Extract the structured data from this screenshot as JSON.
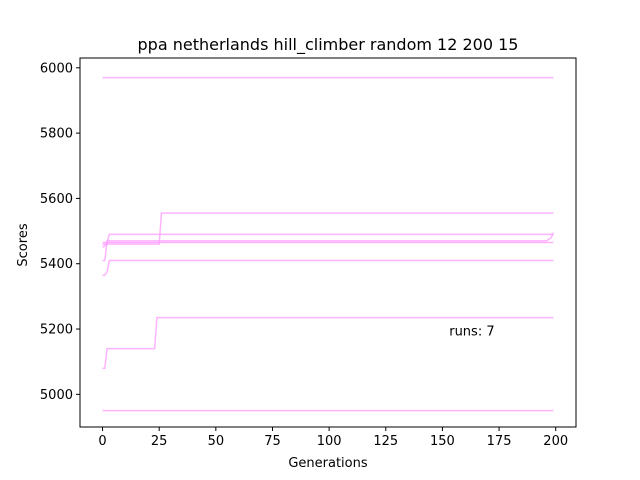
{
  "chart_data": {
    "type": "line",
    "title": "ppa netherlands hill_climber random 12 200 15",
    "xlabel": "Generations",
    "ylabel": "Scores",
    "xlim": [
      -9.95,
      208.95
    ],
    "ylim": [
      4900,
      6030
    ],
    "xticks": [
      0,
      25,
      50,
      75,
      100,
      125,
      150,
      175,
      200
    ],
    "yticks": [
      5000,
      5200,
      5400,
      5600,
      5800,
      6000
    ],
    "grid": false,
    "line_color": "#ff99ff",
    "annotation": {
      "text": "runs: 7",
      "x": 153,
      "y": 5180
    },
    "series": [
      {
        "values": [
          [
            0,
            5970
          ],
          [
            199,
            5970
          ]
        ]
      },
      {
        "values": [
          [
            0,
            5460
          ],
          [
            25,
            5460
          ],
          [
            26,
            5555
          ],
          [
            199,
            5555
          ]
        ]
      },
      {
        "values": [
          [
            0,
            5450
          ],
          [
            1,
            5455
          ],
          [
            2,
            5465
          ],
          [
            199,
            5465
          ]
        ]
      },
      {
        "values": [
          [
            0,
            5465
          ],
          [
            2,
            5465
          ],
          [
            3,
            5490
          ],
          [
            199,
            5490
          ]
        ]
      },
      {
        "values": [
          [
            0,
            5410
          ],
          [
            1,
            5410
          ],
          [
            2,
            5470
          ],
          [
            196,
            5470
          ],
          [
            198,
            5480
          ],
          [
            199,
            5495
          ]
        ]
      },
      {
        "values": [
          [
            0,
            5365
          ],
          [
            1,
            5365
          ],
          [
            2,
            5375
          ],
          [
            3,
            5410
          ],
          [
            199,
            5410
          ]
        ]
      },
      {
        "values": [
          [
            0,
            5080
          ],
          [
            1,
            5080
          ],
          [
            2,
            5140
          ],
          [
            23,
            5140
          ],
          [
            24,
            5235
          ],
          [
            199,
            5235
          ]
        ]
      },
      {
        "values": [
          [
            0,
            4950
          ],
          [
            199,
            4950
          ]
        ]
      }
    ]
  }
}
